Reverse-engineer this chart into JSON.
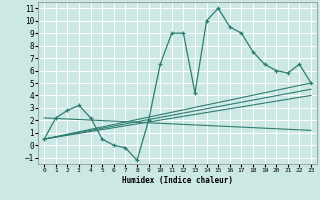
{
  "xlabel": "Humidex (Indice chaleur)",
  "bg_color": "#cce8e4",
  "grid_color": "#ffffff",
  "line_color": "#2e7d70",
  "xlim": [
    -0.5,
    23.5
  ],
  "ylim": [
    -1.5,
    11.5
  ],
  "xticks": [
    0,
    1,
    2,
    3,
    4,
    5,
    6,
    7,
    8,
    9,
    10,
    11,
    12,
    13,
    14,
    15,
    16,
    17,
    18,
    19,
    20,
    21,
    22,
    23
  ],
  "yticks": [
    -1,
    0,
    1,
    2,
    3,
    4,
    5,
    6,
    7,
    8,
    9,
    10,
    11
  ],
  "line_main": {
    "x": [
      0,
      1,
      2,
      3,
      4,
      5,
      6,
      7,
      8,
      9,
      10,
      11,
      12,
      13,
      14,
      15,
      16,
      17,
      18,
      19,
      20,
      21,
      22,
      23
    ],
    "y": [
      0.5,
      2.2,
      2.8,
      3.2,
      2.2,
      0.5,
      0.0,
      -0.2,
      -1.2,
      2.0,
      6.5,
      9.0,
      9.0,
      4.2,
      10.0,
      11.0,
      9.5,
      9.0,
      7.5,
      6.5,
      6.0,
      5.8,
      6.5,
      5.0
    ]
  },
  "line_hi": {
    "x": [
      0,
      23
    ],
    "y": [
      0.5,
      5.0
    ]
  },
  "line_mid1": {
    "x": [
      0,
      23
    ],
    "y": [
      0.5,
      4.5
    ]
  },
  "line_mid2": {
    "x": [
      0,
      23
    ],
    "y": [
      0.5,
      4.0
    ]
  },
  "line_lo": {
    "x": [
      0,
      23
    ],
    "y": [
      2.2,
      1.2
    ]
  }
}
